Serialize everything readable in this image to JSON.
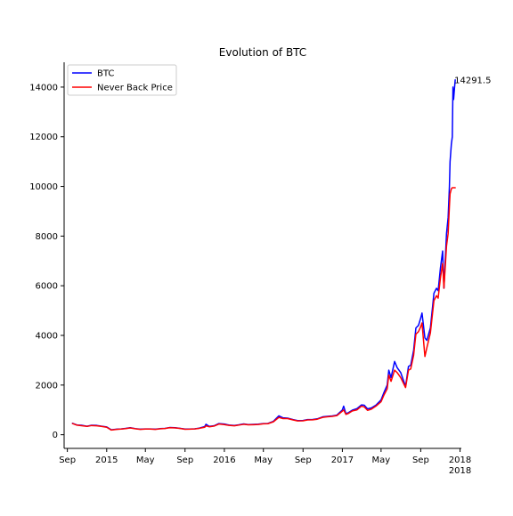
{
  "chart_data": {
    "type": "line",
    "title": "Evolution of BTC",
    "xlabel": "",
    "ylabel": "",
    "x_range": [
      "2014-08-22",
      "2018-01-05"
    ],
    "ylim": [
      -550,
      15000
    ],
    "y_ticks": [
      0,
      2000,
      4000,
      6000,
      8000,
      10000,
      12000,
      14000
    ],
    "x_ticks": [
      {
        "date": "2014-09-01",
        "label": "Sep"
      },
      {
        "date": "2015-01-01",
        "label": "2015"
      },
      {
        "date": "2015-05-01",
        "label": "May"
      },
      {
        "date": "2015-09-01",
        "label": "Sep"
      },
      {
        "date": "2016-01-01",
        "label": "2016"
      },
      {
        "date": "2016-05-01",
        "label": "May"
      },
      {
        "date": "2016-09-01",
        "label": "Sep"
      },
      {
        "date": "2017-01-01",
        "label": "2017"
      },
      {
        "date": "2017-05-01",
        "label": "May"
      },
      {
        "date": "2017-09-01",
        "label": "Sep"
      },
      {
        "date": "2018-01-01",
        "label": "2018"
      }
    ],
    "x_offset_label": "2018",
    "legend_position": "upper left",
    "annotations": [
      {
        "text": "14291.5",
        "x": "2017-12-17",
        "y": 14291.5
      }
    ],
    "x": [
      "2014-09-17",
      "2014-10-01",
      "2014-10-15",
      "2014-11-01",
      "2014-11-15",
      "2014-12-01",
      "2014-12-15",
      "2015-01-01",
      "2015-01-15",
      "2015-02-01",
      "2015-02-15",
      "2015-03-01",
      "2015-03-15",
      "2015-04-01",
      "2015-04-15",
      "2015-05-01",
      "2015-05-15",
      "2015-06-01",
      "2015-06-15",
      "2015-07-01",
      "2015-07-15",
      "2015-08-01",
      "2015-08-15",
      "2015-09-01",
      "2015-09-15",
      "2015-10-01",
      "2015-10-15",
      "2015-11-01",
      "2015-11-05",
      "2015-11-15",
      "2015-12-01",
      "2015-12-15",
      "2016-01-01",
      "2016-01-15",
      "2016-02-01",
      "2016-02-15",
      "2016-03-01",
      "2016-03-15",
      "2016-04-01",
      "2016-04-15",
      "2016-05-01",
      "2016-05-15",
      "2016-06-01",
      "2016-06-18",
      "2016-07-01",
      "2016-07-15",
      "2016-08-01",
      "2016-08-15",
      "2016-09-01",
      "2016-09-15",
      "2016-10-01",
      "2016-10-15",
      "2016-11-01",
      "2016-11-15",
      "2016-12-01",
      "2016-12-15",
      "2017-01-01",
      "2017-01-05",
      "2017-01-12",
      "2017-01-20",
      "2017-02-01",
      "2017-02-15",
      "2017-03-01",
      "2017-03-10",
      "2017-03-20",
      "2017-04-01",
      "2017-04-15",
      "2017-05-01",
      "2017-05-10",
      "2017-05-20",
      "2017-05-25",
      "2017-06-01",
      "2017-06-12",
      "2017-06-20",
      "2017-07-01",
      "2017-07-16",
      "2017-07-25",
      "2017-08-01",
      "2017-08-10",
      "2017-08-17",
      "2017-08-25",
      "2017-09-01",
      "2017-09-05",
      "2017-09-14",
      "2017-09-20",
      "2017-10-01",
      "2017-10-12",
      "2017-10-20",
      "2017-10-25",
      "2017-11-01",
      "2017-11-08",
      "2017-11-12",
      "2017-11-20",
      "2017-11-25",
      "2017-11-29",
      "2017-12-01",
      "2017-12-05",
      "2017-12-08",
      "2017-12-10",
      "2017-12-12",
      "2017-12-15",
      "2017-12-17"
    ],
    "series": [
      {
        "name": "BTC",
        "color": "#0000ff",
        "values": [
          460,
          390,
          380,
          340,
          380,
          375,
          345,
          315,
          200,
          225,
          235,
          255,
          285,
          245,
          225,
          235,
          235,
          225,
          245,
          258,
          290,
          282,
          262,
          229,
          230,
          240,
          265,
          330,
          420,
          335,
          365,
          450,
          430,
          390,
          373,
          400,
          435,
          410,
          418,
          425,
          450,
          455,
          540,
          760,
          680,
          670,
          610,
          570,
          575,
          610,
          615,
          640,
          720,
          740,
          760,
          790,
          998,
          1150,
          850,
          890,
          990,
          1050,
          1200,
          1190,
          1040,
          1080,
          1190,
          1400,
          1700,
          2000,
          2600,
          2300,
          2950,
          2700,
          2500,
          1950,
          2750,
          2800,
          3400,
          4300,
          4400,
          4700,
          4900,
          3900,
          3800,
          4300,
          5700,
          5900,
          5800,
          6700,
          7400,
          5900,
          8100,
          8750,
          10000,
          11000,
          11700,
          12000,
          14000,
          13500,
          14000,
          14291.5
        ]
      },
      {
        "name": "Never Back Price",
        "color": "#ff0000",
        "values": [
          450,
          385,
          365,
          335,
          370,
          360,
          335,
          300,
          190,
          215,
          228,
          248,
          275,
          238,
          218,
          228,
          228,
          218,
          238,
          250,
          282,
          276,
          256,
          222,
          224,
          234,
          258,
          300,
          360,
          320,
          352,
          430,
          410,
          375,
          360,
          388,
          420,
          398,
          405,
          412,
          438,
          445,
          520,
          700,
          650,
          650,
          595,
          555,
          560,
          595,
          600,
          625,
          700,
          720,
          740,
          770,
          950,
          1000,
          820,
          860,
          960,
          1000,
          1150,
          1120,
          980,
          1030,
          1150,
          1330,
          1600,
          1850,
          2400,
          2150,
          2600,
          2500,
          2300,
          1900,
          2600,
          2650,
          3200,
          4050,
          4150,
          4350,
          4500,
          3150,
          3500,
          4100,
          5400,
          5600,
          5500,
          6300,
          6900,
          5900,
          7600,
          8100,
          9200,
          9700,
          9900,
          9950,
          9950,
          9950,
          9950,
          9950
        ]
      }
    ]
  }
}
